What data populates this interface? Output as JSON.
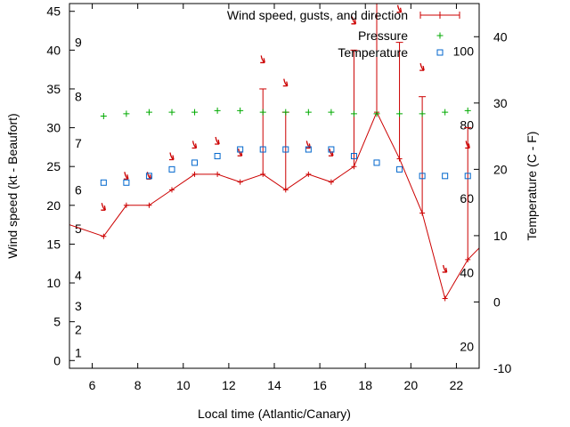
{
  "chart_data": {
    "type": "line",
    "xlabel": "Local time (Atlantic/Canary)",
    "ylabel_left": "Wind speed (kt - Beaufort)",
    "ylabel_right": "Temperature (C - F)",
    "xlim": [
      5,
      23
    ],
    "ylim_left": [
      -1,
      46
    ],
    "ylim_right": [
      -10,
      45
    ],
    "x_ticks": [
      6,
      8,
      10,
      12,
      14,
      16,
      18,
      20,
      22
    ],
    "y_left_ticks": [
      0,
      5,
      10,
      15,
      20,
      25,
      30,
      35,
      40,
      45
    ],
    "y_right_ticks": [
      -10,
      0,
      10,
      20,
      30,
      40
    ],
    "beaufort_labels": [
      {
        "label": "1",
        "kt": 1
      },
      {
        "label": "2",
        "kt": 4
      },
      {
        "label": "3",
        "kt": 7
      },
      {
        "label": "4",
        "kt": 11
      },
      {
        "label": "5",
        "kt": 17
      },
      {
        "label": "6",
        "kt": 22
      },
      {
        "label": "7",
        "kt": 28
      },
      {
        "label": "8",
        "kt": 34
      },
      {
        "label": "9",
        "kt": 41
      }
    ],
    "fahrenheit_labels": [
      {
        "label": "20",
        "celsius": -6.7
      },
      {
        "label": "40",
        "celsius": 4.4
      },
      {
        "label": "60",
        "celsius": 15.6
      },
      {
        "label": "80",
        "celsius": 26.7
      },
      {
        "label": "100",
        "celsius": 37.8
      }
    ],
    "legend": {
      "position": "top-right",
      "entries": [
        {
          "name": "Wind speed, gusts, and direction",
          "color": "#cc0000"
        },
        {
          "name": "Pressure",
          "color": "#00aa00"
        },
        {
          "name": "Temperature",
          "color": "#0066cc"
        }
      ]
    },
    "wind": {
      "color": "#cc0000",
      "x": [
        4.5,
        6.5,
        7.5,
        8.5,
        9.5,
        10.5,
        11.5,
        12.5,
        13.5,
        14.5,
        15.5,
        16.5,
        17.5,
        18.5,
        19.5,
        20.5,
        21.5,
        22.5,
        23.5
      ],
      "speed": [
        18,
        16,
        20,
        20,
        22,
        24,
        24,
        23,
        24,
        22,
        24,
        23,
        25,
        32,
        26,
        19,
        8,
        13,
        16
      ],
      "gust": [
        null,
        null,
        null,
        null,
        null,
        null,
        null,
        null,
        35,
        32,
        null,
        null,
        40,
        48,
        41,
        34,
        null,
        30,
        null
      ],
      "direction_y": [
        null,
        19.5,
        23.5,
        23.5,
        26,
        27.5,
        28,
        26.5,
        38.5,
        35.5,
        27.5,
        26.5,
        43.5,
        47.5,
        45,
        37.5,
        11.5,
        27.5,
        null
      ]
    },
    "pressure": {
      "color": "#00aa00",
      "x": [
        6.5,
        7.5,
        8.5,
        9.5,
        10.5,
        11.5,
        12.5,
        13.5,
        14.5,
        15.5,
        16.5,
        17.5,
        18.5,
        19.5,
        20.5,
        21.5,
        22.5
      ],
      "y": [
        31.5,
        31.8,
        32,
        32,
        32,
        32.2,
        32.2,
        32,
        32,
        32,
        32,
        31.8,
        31.8,
        31.8,
        31.8,
        32,
        32.2
      ]
    },
    "temperature": {
      "color": "#0066cc",
      "x": [
        6.5,
        7.5,
        8.5,
        9.5,
        10.5,
        11.5,
        12.5,
        13.5,
        14.5,
        15.5,
        16.5,
        17.5,
        18.5,
        19.5,
        20.5,
        21.5,
        22.5
      ],
      "celsius": [
        18,
        18,
        19,
        20,
        21,
        22,
        23,
        23,
        23,
        23,
        23,
        22,
        21,
        20,
        19,
        19,
        19
      ]
    }
  }
}
